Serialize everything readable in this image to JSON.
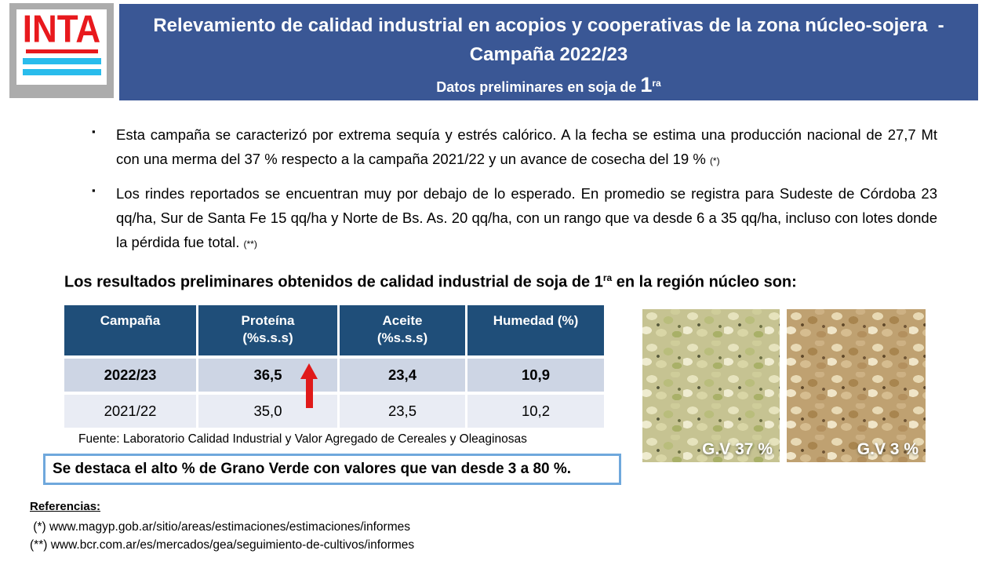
{
  "logo": {
    "text": "INTA"
  },
  "header": {
    "title_line1": "Relevamiento de calidad industrial en acopios y cooperativas de la zona núcleo-sojera  -",
    "title_line2": "Campaña 2022/23",
    "subtitle_prefix": "Datos preliminares en soja de ",
    "subtitle_number": "1",
    "subtitle_sup": "ra"
  },
  "bullets_marker": "▪",
  "bullets": [
    {
      "text_main": "Esta campaña se caracterizó por extrema sequía y estrés calórico. A la fecha se estima una producción nacional de 27,7 Mt con una merma del 37 % respecto a la campaña 2021/22 y un avance de cosecha del 19 % ",
      "ref_mark": "(*)"
    },
    {
      "text_main": "Los rindes reportados se encuentran muy por debajo de lo esperado. En promedio se registra para Sudeste de Córdoba 23 qq/ha, Sur de Santa Fe 15 qq/ha y Norte de Bs. As. 20 qq/ha, con un rango que va desde 6 a 35 qq/ha, incluso con lotes donde la pérdida fue total. ",
      "ref_mark": "(**)"
    }
  ],
  "results_heading": {
    "prefix": "Los resultados preliminares obtenidos de calidad industrial de soja de 1",
    "sup": "ra",
    "suffix": " en la región núcleo son:"
  },
  "table": {
    "headers": [
      {
        "line1": "Campaña",
        "line2": ""
      },
      {
        "line1": "Proteína",
        "line2": "(%s.s.s)"
      },
      {
        "line1": "Aceite",
        "line2": "(%s.s.s)"
      },
      {
        "line1": "Humedad (%)",
        "line2": ""
      }
    ],
    "rows": [
      {
        "campana": "2022/23",
        "proteina": "36,5",
        "aceite": "23,4",
        "humedad": "10,9"
      },
      {
        "campana": "2021/22",
        "proteina": "35,0",
        "aceite": "23,5",
        "humedad": "10,2"
      }
    ],
    "source": "Fuente: Laboratorio Calidad Industrial y Valor Agregado de Cereales y Oleaginosas"
  },
  "highlight_box": {
    "text": "Se destaca el alto % de Grano Verde con valores que van desde 3 a 80 %."
  },
  "references": {
    "heading": "Referencias:",
    "items": [
      " (*) www.magyp.gob.ar/sitio/areas/estimaciones/estimaciones/informes",
      "(**) www.bcr.com.ar/es/mercados/gea/seguimiento-de-cultivos/informes"
    ]
  },
  "images": [
    {
      "label": "G.V 37 %"
    },
    {
      "label": "G.V 3 %"
    }
  ],
  "colors": {
    "header_blue": "#3a5795",
    "table_header_blue": "#1f4e79",
    "table_row1_bg": "#cdd5e4",
    "table_row2_bg": "#e9ecf4",
    "highlight_border": "#6fa8dc",
    "arrow_red": "#e01a1a",
    "logo_red": "#e8191d",
    "logo_cyan": "#29bcec"
  }
}
